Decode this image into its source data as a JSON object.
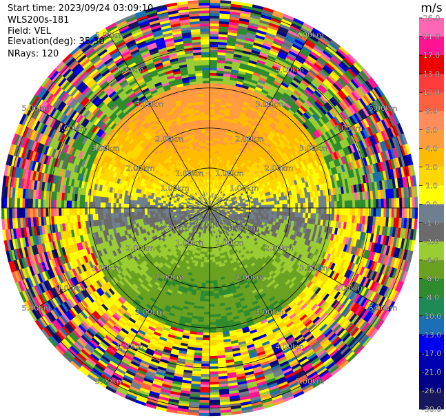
{
  "header": {
    "start_time": "Start time: 2023/09/24 03:09:10",
    "instrument": "WLS200s-181",
    "field": "Field: VEL",
    "elevation": "Elevation(deg): 35.30",
    "nrays": "NRays: 120"
  },
  "chart_data": {
    "type": "ppi",
    "field": "VEL",
    "max_range_km": 5.2,
    "range_rings_km": [
      1,
      2,
      3,
      4,
      5
    ],
    "range_ring_labels": [
      "1.00km",
      "2.00km",
      "3.00km",
      "4.00km",
      "5.00km"
    ],
    "spoke_step_deg": 30,
    "nrays": 120,
    "colorbar": {
      "unit": "m/s",
      "tick_labels": [
        "26.0",
        "21.0",
        "17.0",
        "13.0",
        "10.0",
        "8.0",
        "6.0",
        "4.0",
        "2.0",
        "1.0",
        "0.0",
        "-1.0",
        "-2.0",
        "-4.0",
        "-6.0",
        "-8.0",
        "-10.0",
        "-13.0",
        "-17.0",
        "-21.0",
        "-26.0",
        "-30.0"
      ],
      "bin_colors": [
        "#ff66b3",
        "#ff1493",
        "#ee0000",
        "#ff3b3b",
        "#ff6040",
        "#ff8c5a",
        "#ff9d3d",
        "#ffbb00",
        "#ffd700",
        "#ffff00",
        "#6e7f8f",
        "#6b6b6b",
        "#9acd32",
        "#6aa121",
        "#2e8b2e",
        "#1e8b57",
        "#1a6fb5",
        "#0000ee",
        "#0000b0",
        "#00008b",
        "#18185e"
      ]
    }
  }
}
